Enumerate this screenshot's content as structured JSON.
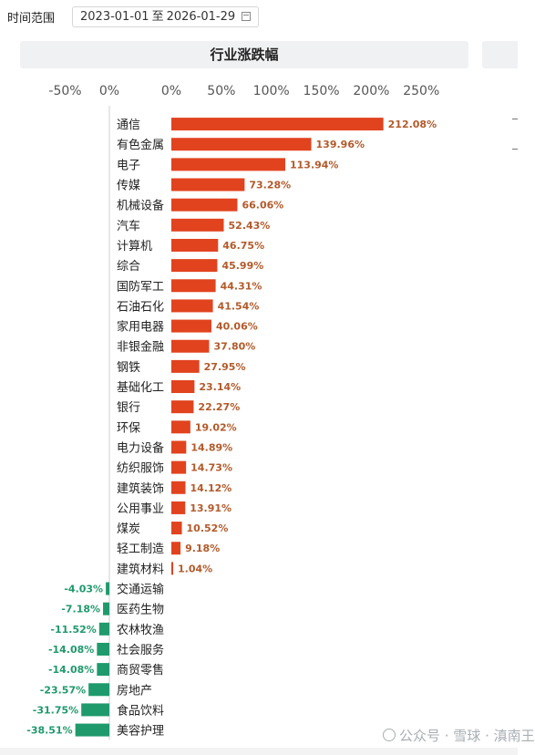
{
  "filter": {
    "label": "时间范围",
    "start": "2023-01-01",
    "separator": "至",
    "end": "2026-01-29",
    "icon": "calendar-icon"
  },
  "panel": {
    "title": "行业涨跌幅"
  },
  "watermark": {
    "text": "公众号 · 雪球 · 滇南王",
    "icon": "wechat-icon"
  },
  "chart_data": {
    "type": "bar",
    "orientation": "horizontal",
    "title": "行业涨跌幅",
    "xlabel": "",
    "ylabel": "",
    "left_ticks": [
      "-50%",
      "0%"
    ],
    "right_ticks": [
      "0%",
      "50%",
      "100%",
      "150%",
      "200%",
      "250%"
    ],
    "xlim_negative": [
      -50,
      0
    ],
    "xlim_positive": [
      0,
      250
    ],
    "positive_color": "#e1431f",
    "negative_color": "#1f9a6c",
    "label_color": "#b35a2a",
    "categories": [
      "通信",
      "有色金属",
      "电子",
      "传媒",
      "机械设备",
      "汽车",
      "计算机",
      "综合",
      "国防军工",
      "石油石化",
      "家用电器",
      "非银金融",
      "钢铁",
      "基础化工",
      "银行",
      "环保",
      "电力设备",
      "纺织服饰",
      "建筑装饰",
      "公用事业",
      "煤炭",
      "轻工制造",
      "建筑材料",
      "交通运输",
      "医药生物",
      "农林牧渔",
      "社会服务",
      "商贸零售",
      "房地产",
      "食品饮料",
      "美容护理"
    ],
    "values": [
      212.08,
      139.96,
      113.94,
      73.28,
      66.06,
      52.43,
      46.75,
      45.99,
      44.31,
      41.54,
      40.06,
      37.8,
      27.95,
      23.14,
      22.27,
      19.02,
      14.89,
      14.73,
      14.12,
      13.91,
      10.52,
      9.18,
      1.04,
      -4.03,
      -7.18,
      -11.52,
      -14.08,
      -14.08,
      -23.57,
      -31.75,
      -38.51
    ],
    "value_labels": [
      "212.08%",
      "139.96%",
      "113.94%",
      "73.28%",
      "66.06%",
      "52.43%",
      "46.75%",
      "45.99%",
      "44.31%",
      "41.54%",
      "40.06%",
      "37.80%",
      "27.95%",
      "23.14%",
      "22.27%",
      "19.02%",
      "14.89%",
      "14.73%",
      "14.12%",
      "13.91%",
      "10.52%",
      "9.18%",
      "1.04%",
      "-4.03%",
      "-7.18%",
      "-11.52%",
      "-14.08%",
      "-14.08%",
      "-23.57%",
      "-31.75%",
      "-38.51%"
    ]
  }
}
